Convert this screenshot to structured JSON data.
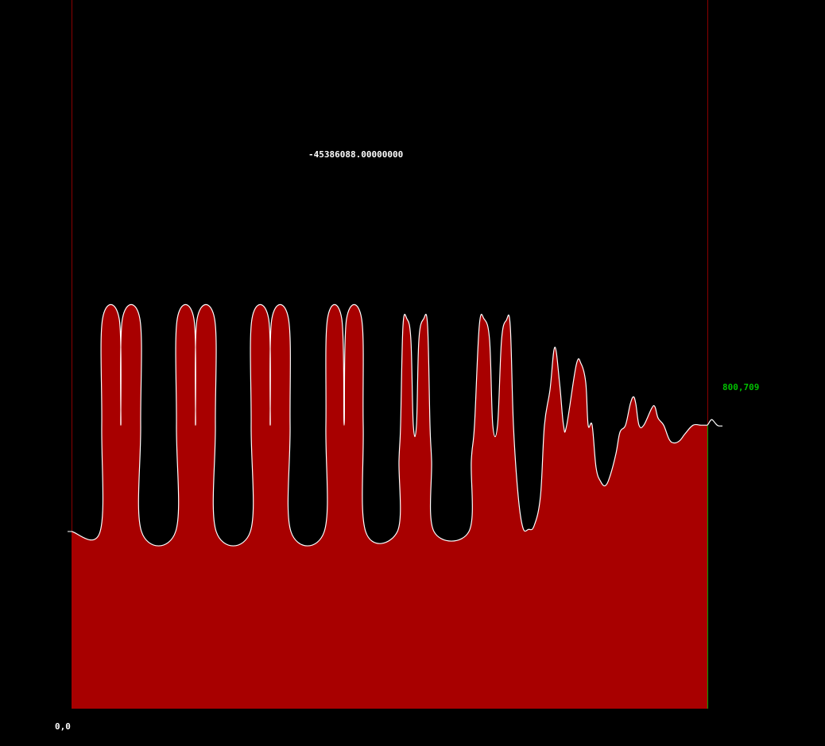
{
  "chart_data": {
    "type": "area",
    "title": "-45386088.00000000",
    "origin_label": "0,0",
    "end_label": "800,709",
    "xlim": [
      0,
      800
    ],
    "ylim": [
      0,
      1000
    ],
    "baseline": 250,
    "colors": {
      "fill": "#a80000",
      "curve": "#ffffff",
      "boundary": "#8b0000",
      "end_label": "#00c000",
      "end_line": "#00a000",
      "text": "#ffffff",
      "background": "#000000"
    },
    "series": [
      {
        "points": [
          [
            0,
            250
          ],
          [
            36,
            250
          ],
          [
            38,
            400
          ],
          [
            39,
            550
          ],
          [
            60,
            550
          ],
          [
            62,
            400
          ],
          [
            64,
            550
          ],
          [
            86,
            550
          ],
          [
            87,
            400
          ],
          [
            88,
            250
          ],
          [
            131,
            250
          ],
          [
            132,
            400
          ],
          [
            133,
            550
          ],
          [
            154,
            550
          ],
          [
            156,
            400
          ],
          [
            158,
            550
          ],
          [
            180,
            550
          ],
          [
            181,
            400
          ],
          [
            182,
            250
          ],
          [
            225,
            250
          ],
          [
            226,
            400
          ],
          [
            227,
            550
          ],
          [
            248,
            550
          ],
          [
            250,
            400
          ],
          [
            252,
            550
          ],
          [
            273,
            550
          ],
          [
            275,
            400
          ],
          [
            276,
            250
          ],
          [
            318,
            250
          ],
          [
            320,
            400
          ],
          [
            322,
            550
          ],
          [
            340,
            550
          ],
          [
            343,
            400
          ],
          [
            346,
            550
          ],
          [
            365,
            550
          ],
          [
            367,
            400
          ],
          [
            370,
            250
          ],
          [
            410,
            250
          ],
          [
            412,
            350
          ],
          [
            414,
            400
          ],
          [
            417,
            540
          ],
          [
            422,
            550
          ],
          [
            427,
            520
          ],
          [
            430,
            400
          ],
          [
            434,
            400
          ],
          [
            437,
            520
          ],
          [
            443,
            550
          ],
          [
            448,
            540
          ],
          [
            451,
            400
          ],
          [
            453,
            350
          ],
          [
            456,
            250
          ],
          [
            500,
            250
          ],
          [
            503,
            350
          ],
          [
            507,
            400
          ],
          [
            513,
            540
          ],
          [
            519,
            550
          ],
          [
            526,
            520
          ],
          [
            530,
            400
          ],
          [
            536,
            400
          ],
          [
            541,
            520
          ],
          [
            547,
            548
          ],
          [
            552,
            540
          ],
          [
            556,
            400
          ],
          [
            562,
            300
          ],
          [
            568,
            255
          ],
          [
            575,
            253
          ],
          [
            582,
            258
          ],
          [
            590,
            300
          ],
          [
            595,
            400
          ],
          [
            602,
            450
          ],
          [
            608,
            510
          ],
          [
            614,
            460
          ],
          [
            619,
            400
          ],
          [
            623,
            400
          ],
          [
            635,
            485
          ],
          [
            641,
            487
          ],
          [
            647,
            460
          ],
          [
            650,
            400
          ],
          [
            655,
            400
          ],
          [
            660,
            340
          ],
          [
            666,
            320
          ],
          [
            672,
            315
          ],
          [
            678,
            330
          ],
          [
            685,
            360
          ],
          [
            690,
            390
          ],
          [
            697,
            400
          ],
          [
            703,
            430
          ],
          [
            707,
            440
          ],
          [
            710,
            430
          ],
          [
            714,
            400
          ],
          [
            720,
            400
          ],
          [
            730,
            424
          ],
          [
            734,
            426
          ],
          [
            738,
            410
          ],
          [
            745,
            400
          ],
          [
            752,
            380
          ],
          [
            758,
            375
          ],
          [
            765,
            378
          ],
          [
            772,
            388
          ],
          [
            782,
            400
          ],
          [
            792,
            400
          ],
          [
            800,
            400
          ]
        ]
      }
    ]
  }
}
